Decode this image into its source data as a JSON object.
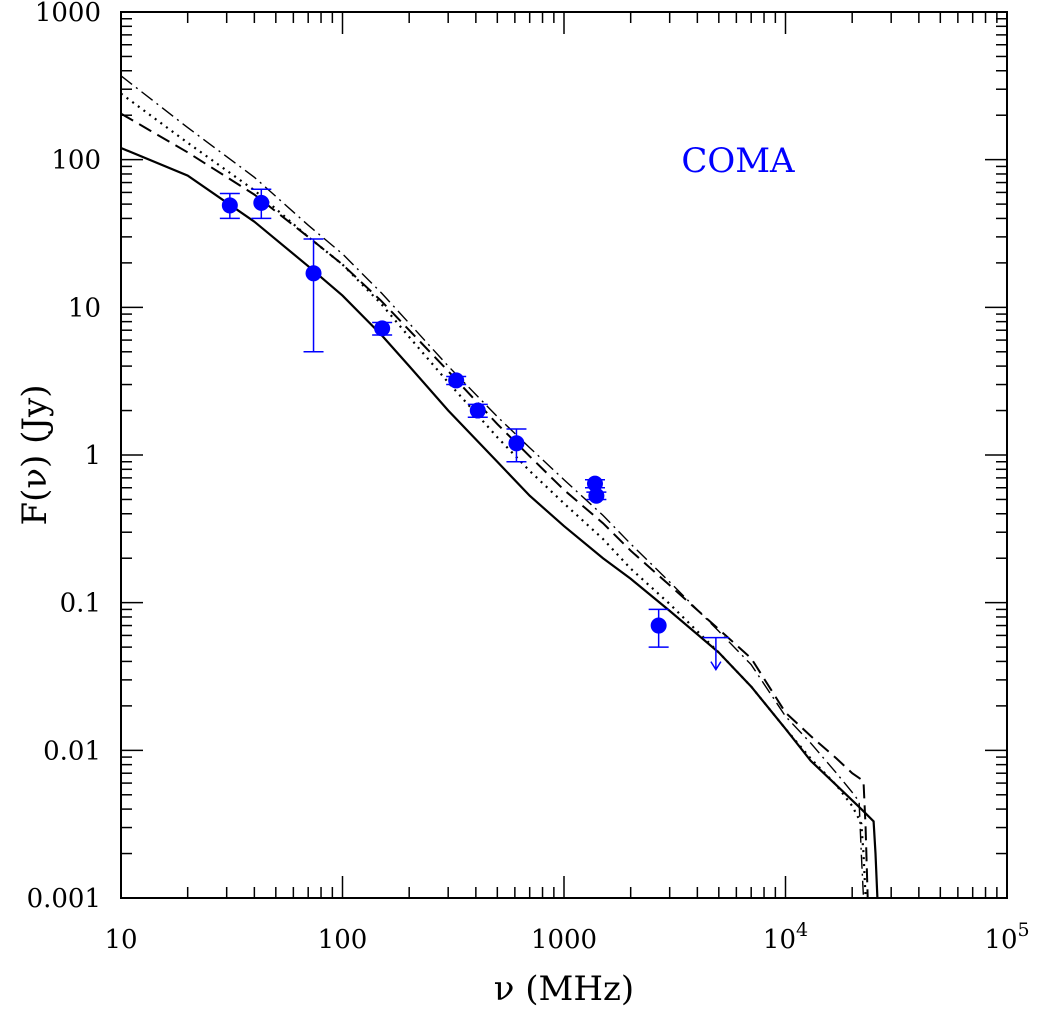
{
  "chart_data": {
    "type": "scatter",
    "title": "",
    "xlabel": "ν  (MHz)",
    "ylabel": "F(ν)  (Jy)",
    "xscale": "log",
    "yscale": "log",
    "xlim": [
      10,
      100000
    ],
    "ylim": [
      0.001,
      1000
    ],
    "grid": false,
    "x_ticks": [
      {
        "value": 10,
        "label": "10"
      },
      {
        "value": 100,
        "label": "100"
      },
      {
        "value": 1000,
        "label": "1000"
      },
      {
        "value": 10000,
        "label": "10",
        "exp": "4"
      },
      {
        "value": 100000,
        "label": "10",
        "exp": "5"
      }
    ],
    "y_ticks": [
      {
        "value": 0.001,
        "label": "0.001"
      },
      {
        "value": 0.01,
        "label": "0.01"
      },
      {
        "value": 0.1,
        "label": "0.1"
      },
      {
        "value": 1,
        "label": "1"
      },
      {
        "value": 10,
        "label": "10"
      },
      {
        "value": 100,
        "label": "100"
      },
      {
        "value": 1000,
        "label": "1000"
      }
    ],
    "annotation": {
      "text": "COMA",
      "color": "#0000ff"
    },
    "points_color": "#0000ff",
    "points": [
      {
        "x": 31,
        "y": 49,
        "ylo": 40,
        "yhi": 59
      },
      {
        "x": 43,
        "y": 51,
        "ylo": 40,
        "yhi": 63
      },
      {
        "x": 74,
        "y": 17,
        "ylo": 5,
        "yhi": 29
      },
      {
        "x": 151,
        "y": 7.2,
        "ylo": 6.5,
        "yhi": 7.9
      },
      {
        "x": 326,
        "y": 3.2,
        "ylo": 3.0,
        "yhi": 3.4
      },
      {
        "x": 408,
        "y": 2.0,
        "ylo": 1.8,
        "yhi": 2.2
      },
      {
        "x": 610,
        "y": 1.2,
        "ylo": 0.9,
        "yhi": 1.5
      },
      {
        "x": 1380,
        "y": 0.64,
        "ylo": 0.6,
        "yhi": 0.68
      },
      {
        "x": 1400,
        "y": 0.53,
        "ylo": 0.5,
        "yhi": 0.56
      },
      {
        "x": 2675,
        "y": 0.07,
        "ylo": 0.05,
        "yhi": 0.09
      }
    ],
    "upper_limits": [
      {
        "x": 4850,
        "y": 0.058
      }
    ],
    "series": [
      {
        "style": "solid",
        "color": "#000000",
        "x": [
          10,
          20,
          40,
          70,
          100,
          150,
          200,
          300,
          500,
          700,
          1000,
          1500,
          2000,
          3000,
          5000,
          7000,
          10000,
          13000,
          17000,
          22000,
          25000,
          25500,
          26000
        ],
        "y": [
          120,
          78,
          38,
          19,
          12,
          6.5,
          4.0,
          2.0,
          0.9,
          0.53,
          0.33,
          0.2,
          0.145,
          0.088,
          0.046,
          0.027,
          0.014,
          0.0085,
          0.0058,
          0.004,
          0.0033,
          0.002,
          0.001
        ]
      },
      {
        "style": "dashed",
        "color": "#000000",
        "x": [
          10,
          20,
          40,
          70,
          100,
          150,
          200,
          300,
          500,
          700,
          1000,
          1500,
          2000,
          3000,
          5000,
          7000,
          10000,
          13000,
          17000,
          20000,
          22500,
          23000,
          23500
        ],
        "y": [
          205,
          112,
          58,
          30,
          19.5,
          11,
          7,
          3.7,
          1.62,
          0.98,
          0.58,
          0.345,
          0.225,
          0.131,
          0.066,
          0.042,
          0.018,
          0.0125,
          0.0088,
          0.007,
          0.0062,
          0.003,
          0.001
        ]
      },
      {
        "style": "dotted",
        "color": "#000000",
        "x": [
          10,
          20,
          40,
          70,
          100,
          150,
          200,
          300,
          500,
          700,
          1000,
          1500,
          2000,
          3000,
          5000,
          7000,
          10000,
          13000,
          17000,
          20000,
          22000,
          22500,
          23000
        ],
        "y": [
          280,
          130,
          62,
          30,
          19.5,
          10.5,
          6.3,
          3.1,
          1.32,
          0.78,
          0.47,
          0.27,
          0.17,
          0.098,
          0.046,
          0.027,
          0.014,
          0.0088,
          0.0058,
          0.0042,
          0.0032,
          0.002,
          0.001
        ]
      },
      {
        "style": "dashdot",
        "color": "#000000",
        "x": [
          10,
          20,
          40,
          70,
          100,
          150,
          200,
          300,
          500,
          700,
          1000,
          1500,
          2000,
          3000,
          5000,
          7000,
          10000,
          13000,
          17000,
          20000,
          21500,
          22000,
          22500
        ],
        "y": [
          370,
          165,
          76,
          36,
          23,
          12.5,
          7.8,
          4.0,
          1.82,
          1.12,
          0.68,
          0.39,
          0.25,
          0.138,
          0.064,
          0.038,
          0.017,
          0.0112,
          0.007,
          0.0052,
          0.0045,
          0.002,
          0.001
        ]
      }
    ]
  }
}
